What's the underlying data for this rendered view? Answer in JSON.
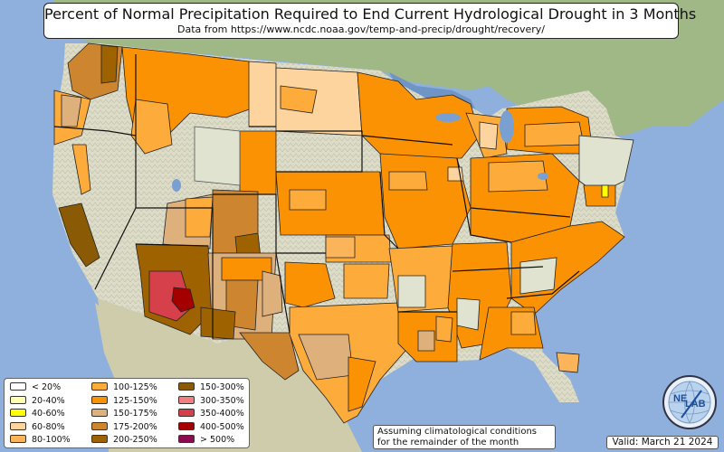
{
  "title": "Percent of Normal Precipitation Required to End Current Hydrological Drought in 3 Months",
  "subtitle": "Data from https://www.ncdc.noaa.gov/temp-and-precip/drought/recovery/",
  "legend": [
    {
      "label": "< 20%",
      "color": "#ffffff"
    },
    {
      "label": "20-40%",
      "color": "#ffffb2"
    },
    {
      "label": "40-60%",
      "color": "#ffff00"
    },
    {
      "label": "60-80%",
      "color": "#fdd49e"
    },
    {
      "label": "80-100%",
      "color": "#fbb45a"
    },
    {
      "label": "100-125%",
      "color": "#fdab3b"
    },
    {
      "label": "125-150%",
      "color": "#fb9203"
    },
    {
      "label": "150-175%",
      "color": "#deb07c"
    },
    {
      "label": "175-200%",
      "color": "#cd8530"
    },
    {
      "label": "200-250%",
      "color": "#9e6200"
    },
    {
      "label": "150-300%",
      "color": "#8a5a05"
    },
    {
      "label": "300-350%",
      "color": "#f08080"
    },
    {
      "label": "350-400%",
      "color": "#d6404a"
    },
    {
      "label": "400-500%",
      "color": "#a50000"
    },
    {
      "label": "> 500%",
      "color": "#8b0a50"
    }
  ],
  "note": {
    "line1": "Assuming climatological conditions",
    "line2": "for the remainder of the month"
  },
  "valid": "Valid: March 21 2024",
  "logo": {
    "text1": "NE",
    "text2": "LAB",
    "icon": "nexlab-globe-logo"
  },
  "colors": {
    "ocean": "#8fb0dc",
    "land": "#dfe3d0",
    "mexico": "#d2cfb0",
    "canada": "#9fb886"
  }
}
